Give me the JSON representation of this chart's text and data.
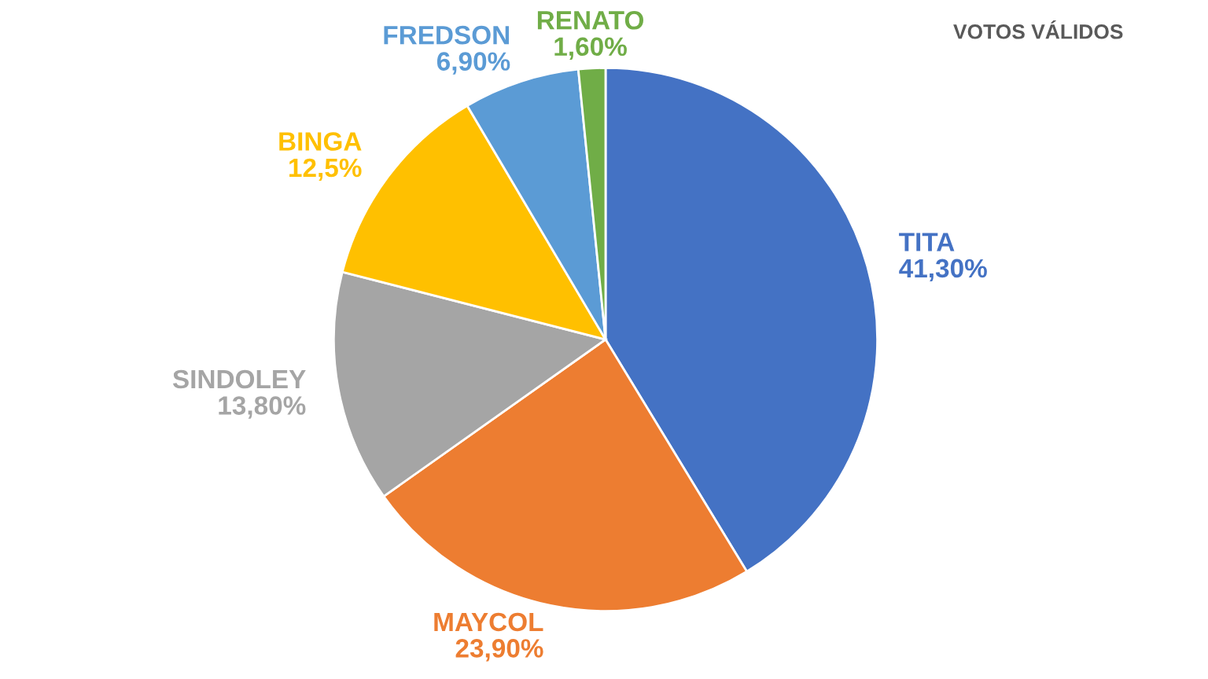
{
  "chart_data": {
    "type": "pie",
    "title": "VOTOS VÁLIDOS",
    "categories": [
      "TITA",
      "MAYCOL",
      "SINDOLEY",
      "BINGA",
      "FREDSON",
      "RENATO"
    ],
    "values": [
      41.3,
      23.9,
      13.8,
      12.5,
      6.9,
      1.6
    ],
    "value_labels": [
      "41,30%",
      "23,90%",
      "13,80%",
      "12,5%",
      "6,90%",
      "1,60%"
    ],
    "colors": [
      "#4472c4",
      "#ed7d31",
      "#a5a5a5",
      "#ffc000",
      "#5b9bd5",
      "#70ad47"
    ],
    "legend": false
  }
}
